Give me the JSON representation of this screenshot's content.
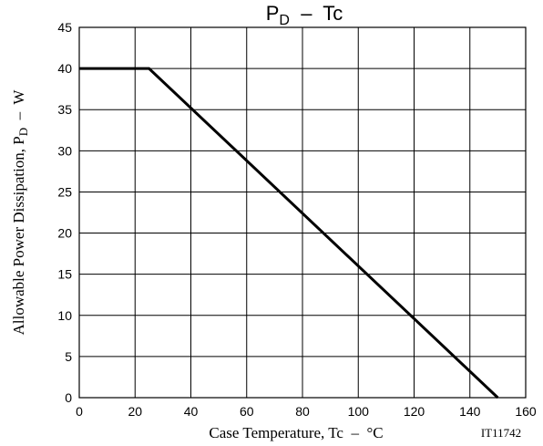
{
  "chart_data": {
    "type": "line",
    "title": {
      "main": "P",
      "sub": "D",
      "rest": "  –  Tc"
    },
    "xlabel": "Case Temperature, Tc  –  °C",
    "ylabel": {
      "main": "Allowable Power Dissipation, P",
      "sub": "D",
      "rest": "  –  W"
    },
    "xlim": [
      0,
      160
    ],
    "ylim": [
      0,
      45
    ],
    "xticks": [
      0,
      20,
      40,
      60,
      80,
      100,
      120,
      140,
      160
    ],
    "yticks": [
      0,
      5,
      10,
      15,
      20,
      25,
      30,
      35,
      40,
      45
    ],
    "grid": true,
    "series": [
      {
        "x": [
          0,
          25,
          150
        ],
        "y": [
          40,
          40,
          0
        ],
        "color": "#000000"
      }
    ],
    "code_label": "IT11742"
  }
}
